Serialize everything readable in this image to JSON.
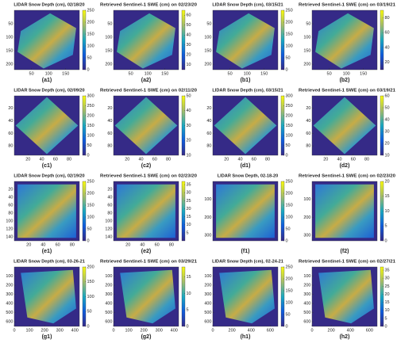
{
  "panels": [
    {
      "title": "LIDAR Snow Depth (cm), 02/18/20",
      "label": "(a1)",
      "xlim": [
        0,
        190
      ],
      "ylim": [
        0,
        220
      ],
      "xticks": [
        50,
        100,
        150
      ],
      "yticks": [
        50,
        100,
        150,
        200
      ],
      "clim": [
        0,
        250
      ],
      "cticks": [
        0,
        50,
        100,
        150,
        200,
        250
      ]
    },
    {
      "title": "Retrieved Sentinel-1 SWE (cm) on 02/23/20",
      "label": "(a2)",
      "xlim": [
        0,
        190
      ],
      "ylim": [
        0,
        220
      ],
      "xticks": [
        50,
        100,
        150
      ],
      "yticks": [
        50,
        100,
        150,
        200
      ],
      "clim": [
        5,
        65
      ],
      "cticks": [
        10,
        20,
        30,
        40,
        50,
        60
      ]
    },
    {
      "title": "LIDAR Snow Depth (cm), 03/15/21",
      "label": "(b1)",
      "xlim": [
        0,
        190
      ],
      "ylim": [
        0,
        220
      ],
      "xticks": [
        50,
        100,
        150
      ],
      "yticks": [
        50,
        100,
        150,
        200
      ],
      "clim": [
        0,
        250
      ],
      "cticks": [
        0,
        50,
        100,
        150,
        200,
        250
      ]
    },
    {
      "title": "Retrieved Sentinel-1 SWE (cm) on 03/19/21",
      "label": "(b2)",
      "xlim": [
        0,
        190
      ],
      "ylim": [
        0,
        220
      ],
      "xticks": [
        50,
        100,
        150
      ],
      "yticks": [
        50,
        100,
        150,
        200
      ],
      "clim": [
        10,
        90
      ],
      "cticks": [
        20,
        40,
        60,
        80
      ]
    },
    {
      "title": "LIDAR Snow Depth (cm), 02/09/20",
      "label": "(c1)",
      "xlim": [
        0,
        95
      ],
      "ylim": [
        0,
        95
      ],
      "xticks": [
        20,
        40,
        60,
        80
      ],
      "yticks": [
        20,
        40,
        60,
        80
      ],
      "clim": [
        0,
        300
      ],
      "cticks": [
        0,
        50,
        100,
        150,
        200,
        250,
        300
      ]
    },
    {
      "title": "Retrieved Sentinel-1 SWE (cm) on 02/11/20",
      "label": "(c2)",
      "xlim": [
        0,
        95
      ],
      "ylim": [
        0,
        95
      ],
      "xticks": [
        20,
        40,
        60,
        80
      ],
      "yticks": [
        20,
        40,
        60,
        80
      ],
      "clim": [
        10,
        50
      ],
      "cticks": [
        10,
        20,
        30,
        40,
        50
      ]
    },
    {
      "title": "LIDAR Snow Depth (cm), 03/15/21",
      "label": "(d1)",
      "xlim": [
        0,
        95
      ],
      "ylim": [
        0,
        95
      ],
      "xticks": [
        20,
        40,
        60,
        80
      ],
      "yticks": [
        20,
        40,
        60,
        80
      ],
      "clim": [
        0,
        300
      ],
      "cticks": [
        0,
        50,
        100,
        150,
        200,
        250,
        300
      ]
    },
    {
      "title": "Retrieved Sentinel-1 SWE (cm) on 03/19/21",
      "label": "(d2)",
      "xlim": [
        0,
        95
      ],
      "ylim": [
        0,
        95
      ],
      "xticks": [
        20,
        40,
        60,
        80
      ],
      "yticks": [
        20,
        40,
        60,
        80
      ],
      "clim": [
        10,
        60
      ],
      "cticks": [
        10,
        20,
        30,
        40,
        50,
        60
      ]
    },
    {
      "title": "LIDAR Snow Depth (cm), 02/19/20",
      "label": "(e1)",
      "xlim": [
        0,
        90
      ],
      "ylim": [
        0,
        150
      ],
      "xticks": [
        20,
        40,
        60,
        80
      ],
      "yticks": [
        20,
        40,
        60,
        80,
        100,
        120,
        140
      ],
      "clim": [
        0,
        250
      ],
      "cticks": [
        0,
        50,
        100,
        150,
        200,
        250
      ]
    },
    {
      "title": "Retrieved Sentinel-1 SWE (cm) on 02/23/20",
      "label": "(e2)",
      "xlim": [
        0,
        90
      ],
      "ylim": [
        0,
        150
      ],
      "xticks": [
        20,
        40,
        60,
        80
      ],
      "yticks": [
        20,
        40,
        60,
        80,
        100,
        120,
        140
      ],
      "clim": [
        0,
        37
      ],
      "cticks": [
        5,
        10,
        15,
        20,
        25,
        30,
        35
      ]
    },
    {
      "title": "LIDAR Snow Depth, 02-18-20",
      "label": "(f1)",
      "xlim": [
        0,
        300
      ],
      "ylim": [
        0,
        330
      ],
      "xticks": [],
      "yticks": [
        100,
        200,
        300
      ],
      "clim": [
        0,
        250
      ],
      "cticks": [
        0,
        50,
        100,
        150,
        200,
        250
      ]
    },
    {
      "title": "Retrieved Sentinel-1 SWE (cm) on 02/23/20",
      "label": "(f2)",
      "xlim": [
        0,
        300
      ],
      "ylim": [
        0,
        330
      ],
      "xticks": [],
      "yticks": [
        100,
        200,
        300
      ],
      "clim": [
        0,
        20
      ],
      "cticks": [
        0,
        5,
        10,
        15,
        20
      ]
    },
    {
      "title": "LIDAR Snow Depth (cm), 03-26-21",
      "label": "(g1)",
      "xlim": [
        0,
        430
      ],
      "ylim": [
        0,
        650
      ],
      "xticks": [
        0,
        100,
        200,
        300,
        400
      ],
      "yticks": [
        100,
        200,
        300,
        400,
        500,
        600
      ],
      "clim": [
        0,
        200
      ],
      "cticks": [
        0,
        50,
        100,
        150,
        200
      ]
    },
    {
      "title": "Retrieved Sentinel-1 SWE (cm) on 03/29/21",
      "label": "(g2)",
      "xlim": [
        0,
        430
      ],
      "ylim": [
        0,
        650
      ],
      "xticks": [
        0,
        100,
        200,
        300,
        400
      ],
      "yticks": [
        100,
        200,
        300,
        400,
        500,
        600
      ],
      "clim": [
        0,
        18
      ],
      "cticks": [
        0,
        5,
        10,
        15
      ]
    },
    {
      "title": "LIDAR Snow Depth (cm), 02-24-21",
      "label": "(h1)",
      "xlim": [
        0,
        680
      ],
      "ylim": [
        0,
        650
      ],
      "xticks": [
        0,
        200,
        400,
        600
      ],
      "yticks": [
        100,
        200,
        300,
        400,
        500,
        600
      ],
      "clim": [
        0,
        250
      ],
      "cticks": [
        0,
        50,
        100,
        150,
        200,
        250
      ]
    },
    {
      "title": "Retrieved Sentinel-1 SWE (cm) on 02/27/21",
      "label": "(h2)",
      "xlim": [
        0,
        680
      ],
      "ylim": [
        0,
        650
      ],
      "xticks": [
        0,
        200,
        400,
        600
      ],
      "yticks": [
        100,
        200,
        300,
        400,
        500,
        600
      ],
      "clim": [
        0,
        37
      ],
      "cticks": [
        0,
        5,
        10,
        15,
        20,
        25,
        30,
        35
      ]
    }
  ]
}
